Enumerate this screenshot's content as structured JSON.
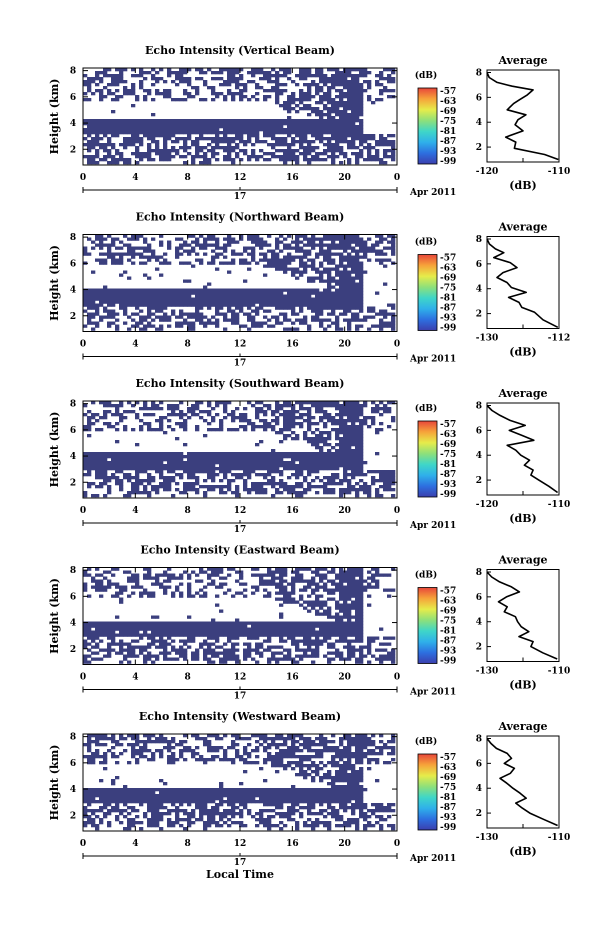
{
  "figure": {
    "xlabel": "Local Time",
    "date_label": "Apr 2011",
    "day_label": "17",
    "colorbar_unit": "(dB)",
    "colorbar_ticks": [
      "-57",
      "-63",
      "-69",
      "-75",
      "-81",
      "-87",
      "-93",
      "-99"
    ],
    "colorbar_colors": [
      "#3b3fae",
      "#2d6fe0",
      "#2fb0ea",
      "#3fd6c8",
      "#8ee07a",
      "#e6ec4a",
      "#f6a33a",
      "#e8463a"
    ],
    "series_color": "#3b3f7e",
    "average_title": "Average",
    "average_xlabel": "(dB)"
  },
  "chart_data": [
    {
      "type": "heatmap",
      "title": "Echo Intensity (Vertical Beam)",
      "ylabel": "Height (km)",
      "x_ticks": [
        "0",
        "4",
        "8",
        "12",
        "16",
        "20",
        "0"
      ],
      "y_ticks": [
        "2",
        "4",
        "6",
        "8"
      ],
      "x_range": [
        0,
        24
      ],
      "y_range": [
        0.8,
        8.2
      ],
      "lower_band": [
        3.0,
        4.3
      ],
      "upper_clutter_base": 5.7,
      "fill_fraction": 0.38,
      "average": {
        "type": "line",
        "xlim": [
          -120,
          -110
        ],
        "x_ticks": [
          "-120",
          "-110"
        ],
        "y_ticks": [
          "2",
          "4",
          "6",
          "8"
        ],
        "x": [
          -120.0,
          -119.7,
          -118.6,
          -116.5,
          -113.6,
          -114.4,
          -115.5,
          -116.3,
          -117.2,
          -114.6,
          -115.7,
          -116.1,
          -115.0,
          -117.4,
          -116.0,
          -116.2,
          -112.0,
          -110.1
        ],
        "y": [
          8.0,
          7.6,
          7.2,
          6.9,
          6.6,
          6.2,
          5.8,
          5.5,
          5.0,
          4.6,
          4.2,
          3.8,
          3.3,
          2.8,
          2.4,
          1.9,
          1.4,
          1.0
        ]
      }
    },
    {
      "type": "heatmap",
      "title": "Echo Intensity (Northward Beam)",
      "ylabel": "Height (km)",
      "x_ticks": [
        "0",
        "4",
        "8",
        "12",
        "16",
        "20",
        "0"
      ],
      "y_ticks": [
        "2",
        "4",
        "6",
        "8"
      ],
      "x_range": [
        0,
        24
      ],
      "y_range": [
        0.8,
        8.2
      ],
      "lower_band": [
        2.7,
        4.0
      ],
      "upper_clutter_base": 5.8,
      "fill_fraction": 0.42,
      "average": {
        "type": "line",
        "xlim": [
          -130,
          -112
        ],
        "x_ticks": [
          "-130",
          "-112"
        ],
        "y_ticks": [
          "2",
          "4",
          "6",
          "8"
        ],
        "x": [
          -130.0,
          -129.4,
          -127.9,
          -125.8,
          -128.3,
          -124.2,
          -122.5,
          -126.0,
          -127.5,
          -125.0,
          -123.9,
          -120.2,
          -124.6,
          -122.0,
          -121.3,
          -118.1,
          -116.0,
          -112.3
        ],
        "y": [
          8.0,
          7.6,
          7.2,
          6.9,
          6.5,
          6.1,
          5.7,
          5.3,
          4.9,
          4.5,
          4.1,
          3.7,
          3.3,
          2.9,
          2.5,
          2.1,
          1.5,
          0.9
        ]
      }
    },
    {
      "type": "heatmap",
      "title": "Echo Intensity (Southward Beam)",
      "ylabel": "Height (km)",
      "x_ticks": [
        "0",
        "4",
        "8",
        "12",
        "16",
        "20",
        "0"
      ],
      "y_ticks": [
        "2",
        "4",
        "6",
        "8"
      ],
      "x_range": [
        0,
        24
      ],
      "y_range": [
        0.8,
        8.2
      ],
      "lower_band": [
        2.9,
        4.2
      ],
      "upper_clutter_base": 6.0,
      "fill_fraction": 0.36,
      "average": {
        "type": "line",
        "xlim": [
          -120,
          -110
        ],
        "x_ticks": [
          "-120",
          "-110"
        ],
        "y_ticks": [
          "2",
          "4",
          "6",
          "8"
        ],
        "x": [
          -120.0,
          -119.3,
          -118.2,
          -116.8,
          -114.7,
          -116.9,
          -115.2,
          -113.5,
          -117.2,
          -116.0,
          -115.3,
          -114.1,
          -114.8,
          -113.6,
          -113.9,
          -112.8,
          -111.4,
          -110.2
        ],
        "y": [
          8.0,
          7.6,
          7.2,
          6.8,
          6.4,
          6.0,
          5.6,
          5.2,
          4.8,
          4.4,
          4.0,
          3.6,
          3.2,
          2.8,
          2.4,
          2.0,
          1.5,
          1.0
        ]
      }
    },
    {
      "type": "heatmap",
      "title": "Echo Intensity (Eastward Beam)",
      "ylabel": "Height (km)",
      "x_ticks": [
        "0",
        "4",
        "8",
        "12",
        "16",
        "20",
        "0"
      ],
      "y_ticks": [
        "2",
        "4",
        "6",
        "8"
      ],
      "x_range": [
        0,
        24
      ],
      "y_range": [
        0.8,
        8.2
      ],
      "lower_band": [
        2.9,
        4.0
      ],
      "upper_clutter_base": 6.0,
      "fill_fraction": 0.35,
      "average": {
        "type": "line",
        "xlim": [
          -130,
          -110
        ],
        "x_ticks": [
          "-130",
          "-110"
        ],
        "y_ticks": [
          "2",
          "4",
          "6",
          "8"
        ],
        "x": [
          -130.0,
          -128.7,
          -126.5,
          -123.2,
          -121.0,
          -124.6,
          -126.8,
          -124.4,
          -125.2,
          -122.1,
          -121.5,
          -120.5,
          -118.4,
          -121.1,
          -117.2,
          -117.8,
          -114.5,
          -110.5
        ],
        "y": [
          8.0,
          7.6,
          7.2,
          6.8,
          6.4,
          6.0,
          5.6,
          5.2,
          4.8,
          4.4,
          4.0,
          3.6,
          3.2,
          2.8,
          2.4,
          2.0,
          1.5,
          1.0
        ]
      }
    },
    {
      "type": "heatmap",
      "title": "Echo Intensity (Westward Beam)",
      "ylabel": "Height (km)",
      "x_ticks": [
        "0",
        "4",
        "8",
        "12",
        "16",
        "20",
        "0"
      ],
      "y_ticks": [
        "2",
        "4",
        "6",
        "8"
      ],
      "x_range": [
        0,
        24
      ],
      "y_range": [
        0.8,
        8.2
      ],
      "lower_band": [
        2.9,
        4.1
      ],
      "upper_clutter_base": 5.9,
      "fill_fraction": 0.4,
      "average": {
        "type": "line",
        "xlim": [
          -130,
          -110
        ],
        "x_ticks": [
          "-130",
          "-110"
        ],
        "y_ticks": [
          "2",
          "4",
          "6",
          "8"
        ],
        "x": [
          -130.0,
          -128.9,
          -127.4,
          -124.4,
          -123.2,
          -125.2,
          -122.4,
          -123.5,
          -126.4,
          -124.5,
          -122.8,
          -120.8,
          -119.1,
          -122.0,
          -120.2,
          -118.1,
          -114.3,
          -110.4
        ],
        "y": [
          8.0,
          7.6,
          7.2,
          6.8,
          6.4,
          6.0,
          5.6,
          5.2,
          4.8,
          4.4,
          4.0,
          3.6,
          3.2,
          2.8,
          2.4,
          2.0,
          1.5,
          1.0
        ]
      }
    }
  ]
}
